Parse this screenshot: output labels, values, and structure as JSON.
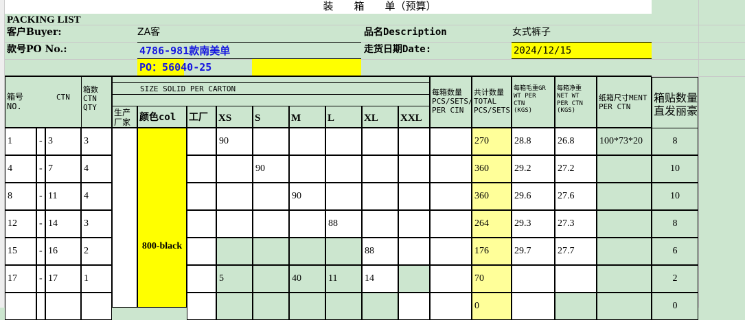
{
  "title": "装　　箱　　单（预算）",
  "subtitle": "PACKING     LIST",
  "buyer": {
    "label": "客户Buyer:",
    "value": "ZA客"
  },
  "po": {
    "label": "款号PO No.:",
    "value": "4786-981款南美单",
    "po_number": "PO：56040-25"
  },
  "description": {
    "label": "品名Description",
    "value": "女式裤子"
  },
  "date": {
    "label": "走货日期Date:",
    "value": "2024/12/15"
  },
  "headers": {
    "no": "箱号\nNO.",
    "ctn": "CTN",
    "qty": "箱数\nCTN\nQTY",
    "size_solid": "SIZE SOLID PER CARTON",
    "producer": "生产\n厂家",
    "color": "颜色col",
    "factory": "工厂",
    "sizes": [
      "XS",
      "S",
      "M",
      "L",
      "XL",
      "XXL"
    ],
    "per_ctn": "每箱数量\nPCS/SETS/\nPER CIN",
    "total": "共计数量\nTOTAL\nPCS/SETS",
    "gross": "每箱毛重GR\nWT PER\nCTN\n(KGS)",
    "net": "每箱净重\nNET WT\nPER CTN\n(KGS)",
    "dim": "纸箱尺寸MENT\nPER CTN",
    "labels": "箱贴数量\n直发丽豪"
  },
  "color_value": "800-black",
  "rows": [
    {
      "from": "1",
      "dash": "-",
      "to": "3",
      "qty": "3",
      "sizes": [
        "90",
        "",
        "",
        "",
        "",
        ""
      ],
      "total": "270",
      "gross": "28.8",
      "net": "26.8",
      "dim": "100*73*20",
      "labels": "8"
    },
    {
      "from": "4",
      "dash": "-",
      "to": "7",
      "qty": "4",
      "sizes": [
        "",
        "90",
        "",
        "",
        "",
        ""
      ],
      "total": "360",
      "gross": "29.2",
      "net": "27.2",
      "dim": "",
      "labels": "10"
    },
    {
      "from": "8",
      "dash": "-",
      "to": "11",
      "qty": "4",
      "sizes": [
        "",
        "",
        "90",
        "",
        "",
        ""
      ],
      "total": "360",
      "gross": "29.6",
      "net": "27.6",
      "dim": "",
      "labels": "10"
    },
    {
      "from": "12",
      "dash": "-",
      "to": "14",
      "qty": "3",
      "sizes": [
        "",
        "",
        "",
        "88",
        "",
        ""
      ],
      "total": "264",
      "gross": "29.3",
      "net": "27.3",
      "dim": "",
      "labels": "8"
    },
    {
      "from": "15",
      "dash": "-",
      "to": "16",
      "qty": "2",
      "sizes": [
        "",
        "",
        "",
        "",
        "88",
        ""
      ],
      "total": "176",
      "gross": "29.7",
      "net": "27.7",
      "dim": "",
      "labels": "6"
    },
    {
      "from": "17",
      "dash": "-",
      "to": "17",
      "qty": "1",
      "sizes": [
        "5",
        "",
        "40",
        "11",
        "14",
        ""
      ],
      "total": "70",
      "gross": "",
      "net": "",
      "dim": "",
      "labels": "2"
    },
    {
      "from": "",
      "dash": "",
      "to": "",
      "qty": "",
      "sizes": [
        "",
        "",
        "",
        "",
        "",
        ""
      ],
      "total": "0",
      "gross": "",
      "net": "",
      "dim": "",
      "labels": "0"
    }
  ]
}
